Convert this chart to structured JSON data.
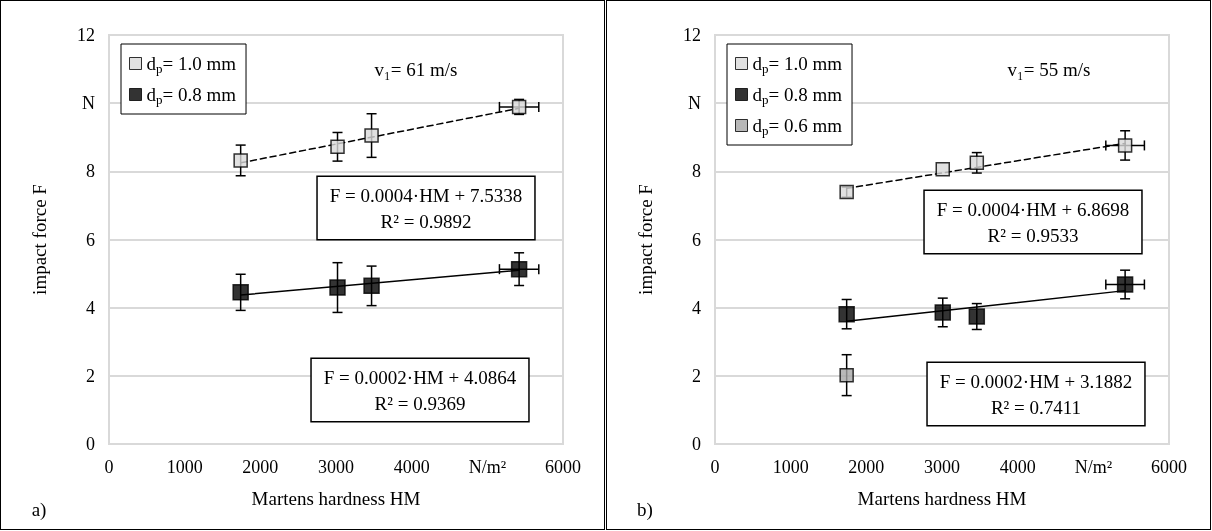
{
  "chart_data": [
    {
      "type": "scatter",
      "xlabel": "Martens hardness HM",
      "ylabel": "impact force F",
      "xlim": [
        0,
        6000
      ],
      "xticks": [
        0,
        1000,
        2000,
        3000,
        4000,
        {
          "value": 5000,
          "label": "N/m²"
        },
        6000
      ],
      "ylim": [
        0,
        12
      ],
      "yticks": [
        0,
        2,
        4,
        6,
        8,
        {
          "value": 10,
          "label": "N"
        },
        12
      ],
      "grid": "y",
      "legend": "top left",
      "marker": "square",
      "annotations": [
        "v₁= 61 m/s",
        "F = 0.0004·HM + 7.5338\nR² = 0.9892",
        "F = 0.0002·HM + 4.0864\nR² = 0.9369",
        "a)"
      ],
      "series": [
        {
          "name": "d$_{p}$= 1.0 mm",
          "color": "#d9d9d9",
          "x": [
            1740,
            3020,
            3470,
            5420
          ],
          "values": [
            8.32,
            8.72,
            9.05,
            9.89
          ],
          "errors": [
            0.45,
            0.42,
            0.64,
            0.22
          ],
          "xerrors": [
            null,
            null,
            null,
            260
          ]
        },
        {
          "name": "d$_{p}$= 0.8 mm",
          "color": "#000000",
          "x": [
            1740,
            3020,
            3470,
            5420
          ],
          "values": [
            4.45,
            4.59,
            4.64,
            5.13
          ],
          "errors": [
            0.53,
            0.73,
            0.58,
            0.48
          ],
          "xerrors": [
            null,
            null,
            null,
            260
          ]
        },
        {
          "type": "line",
          "color": "#000000",
          "line_style": "dashed",
          "marker": "none",
          "x": [
            1740,
            5420
          ],
          "values": [
            8.25,
            9.85
          ]
        },
        {
          "type": "line",
          "color": "#000000",
          "line_style": "solid",
          "marker": "none",
          "x": [
            1740,
            5420
          ],
          "values": [
            4.37,
            5.1
          ]
        }
      ]
    },
    {
      "type": "scatter",
      "xlabel": "Martens hardness HM",
      "ylabel": "impact force F",
      "xlim": [
        0,
        6000
      ],
      "xticks": [
        0,
        1000,
        2000,
        3000,
        4000,
        {
          "value": 5000,
          "label": "N/m²"
        },
        6000
      ],
      "ylim": [
        0,
        12
      ],
      "yticks": [
        0,
        2,
        4,
        6,
        8,
        {
          "value": 10,
          "label": "N"
        },
        12
      ],
      "grid": "y",
      "legend": "top left",
      "marker": "square",
      "annotations": [
        "v₁= 55 m/s",
        "F = 0.0004·HM + 6.8698\nR² = 0.9533",
        "F = 0.0002·HM + 3.1882\nR² = 0.7411",
        "b)"
      ],
      "series": [
        {
          "name": "d$_{p}$= 1.0 mm",
          "color": "#d9d9d9",
          "x": [
            1740,
            3010,
            3460,
            5420
          ],
          "values": [
            7.39,
            8.06,
            8.25,
            8.76
          ],
          "errors": [
            0.15,
            null,
            0.3,
            0.43
          ],
          "xerrors": [
            null,
            null,
            null,
            255
          ]
        },
        {
          "name": "d$_{p}$= 0.8 mm",
          "color": "#000000",
          "x": [
            1740,
            3010,
            3460,
            5420
          ],
          "values": [
            3.81,
            3.86,
            3.74,
            4.68
          ],
          "errors": [
            0.43,
            0.42,
            0.38,
            0.42
          ],
          "xerrors": [
            null,
            null,
            null,
            255
          ]
        },
        {
          "name": "d$_{p}$= 0.6 mm",
          "color": "#a6a6a6",
          "x": [
            1740
          ],
          "values": [
            2.02
          ],
          "errors": [
            0.6
          ],
          "xerrors": [
            null
          ]
        },
        {
          "type": "line",
          "color": "#000000",
          "line_style": "dashed",
          "marker": "none",
          "x": [
            1740,
            5420
          ],
          "values": [
            7.5,
            8.82
          ]
        },
        {
          "type": "line",
          "color": "#000000",
          "line_style": "solid",
          "marker": "none",
          "x": [
            1740,
            5420
          ],
          "values": [
            3.6,
            4.5
          ]
        }
      ]
    }
  ]
}
